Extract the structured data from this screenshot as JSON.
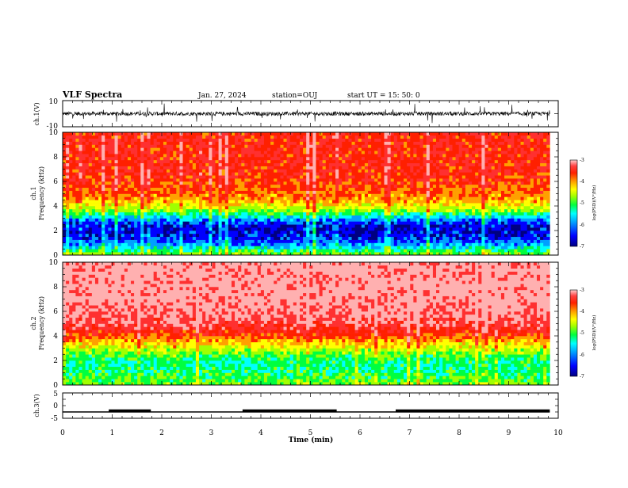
{
  "header": {
    "title": "VLF Spectra",
    "date": "Jan. 27, 2024",
    "station": "station=OUJ",
    "start_ut": "start UT =  15: 50: 0"
  },
  "colors": {
    "spectrum_scale": [
      "#000080",
      "#0000ff",
      "#00a0ff",
      "#00ffff",
      "#00ff40",
      "#a0ff00",
      "#ffff00",
      "#ffa000",
      "#ff2000",
      "#ff3030",
      "#ffb0b0"
    ],
    "trace": "#000000",
    "axis": "#000000"
  },
  "chart_data": [
    {
      "type": "line",
      "panel": "ch1-waveform",
      "ylabel": "ch.1(V)",
      "ylim": [
        -10,
        10
      ],
      "y_ticks": [
        "10",
        "-10"
      ],
      "baseline_level": 0,
      "noise_amplitude": 3
    },
    {
      "type": "heatmap",
      "panel": "ch1-spectrogram",
      "ylabel_line1": "ch.1",
      "ylabel_line2": "Frequency (kHz)",
      "ylim": [
        0,
        10
      ],
      "y_ticks": [
        "0",
        "2",
        "4",
        "6",
        "8",
        "10"
      ],
      "xlim": [
        0,
        10
      ],
      "data_extent_min": 9.83,
      "intensity_profile": {
        "freq_khz": [
          0,
          0.5,
          1,
          1.5,
          2,
          2.5,
          3,
          3.5,
          4,
          4.5,
          5,
          6,
          7,
          8,
          9,
          10
        ],
        "log_psd": [
          -5.0,
          -5.6,
          -6.2,
          -6.5,
          -6.6,
          -6.5,
          -6.0,
          -5.2,
          -4.7,
          -4.3,
          -4.1,
          -3.9,
          -3.8,
          -3.8,
          -3.8,
          -3.8
        ]
      },
      "colorbar": {
        "label": "log(PSD)(V²/Hz)",
        "ticks": [
          "-3",
          "-4",
          "-5",
          "-6",
          "-7"
        ],
        "range": [
          -7,
          -3
        ]
      }
    },
    {
      "type": "heatmap",
      "panel": "ch2-spectrogram",
      "ylabel_line1": "ch.2",
      "ylabel_line2": "Frequency (kHz)",
      "ylim": [
        0,
        10
      ],
      "y_ticks": [
        "0",
        "2",
        "4",
        "6",
        "8",
        "10"
      ],
      "xlim": [
        0,
        10
      ],
      "data_extent_min": 9.83,
      "intensity_profile": {
        "freq_khz": [
          0,
          0.5,
          1,
          1.5,
          2,
          2.5,
          3,
          3.5,
          4,
          4.5,
          5,
          6,
          7,
          8,
          9,
          10
        ],
        "log_psd": [
          -5.0,
          -5.3,
          -5.4,
          -5.5,
          -5.5,
          -5.2,
          -4.8,
          -4.4,
          -4.0,
          -3.7,
          -3.5,
          -3.3,
          -3.2,
          -3.2,
          -3.2,
          -3.2
        ]
      },
      "colorbar": {
        "label": "log(PSD)(V²/Hz)",
        "ticks": [
          "-3",
          "-4",
          "-5",
          "-6",
          "-7"
        ],
        "range": [
          -7,
          -3
        ]
      }
    },
    {
      "type": "line",
      "panel": "ch3-signal",
      "ylabel": "ch.3(V)",
      "ylim": [
        -5,
        5
      ],
      "y_ticks": [
        "5",
        "0",
        "-5"
      ],
      "baseline_level": -2.5,
      "pulse_intervals_min": [
        [
          0.93,
          1.78
        ],
        [
          3.63,
          5.53
        ],
        [
          6.72,
          9.83
        ]
      ],
      "xlabel": "Time (min)",
      "x_ticks": [
        "0",
        "1",
        "2",
        "3",
        "4",
        "5",
        "6",
        "7",
        "8",
        "9",
        "10"
      ],
      "xlim": [
        0,
        10
      ]
    }
  ]
}
